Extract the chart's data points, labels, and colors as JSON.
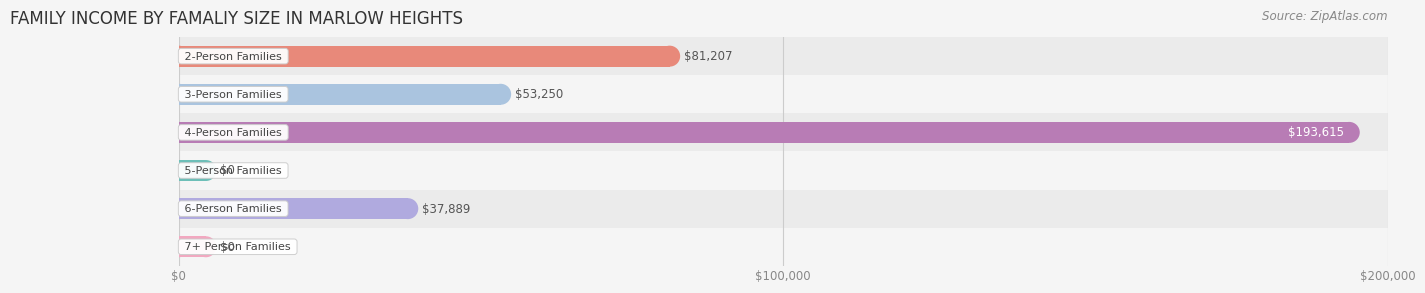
{
  "title": "FAMILY INCOME BY FAMALIY SIZE IN MARLOW HEIGHTS",
  "source": "Source: ZipAtlas.com",
  "categories": [
    "2-Person Families",
    "3-Person Families",
    "4-Person Families",
    "5-Person Families",
    "6-Person Families",
    "7+ Person Families"
  ],
  "values": [
    81207,
    53250,
    193615,
    0,
    37889,
    0
  ],
  "bar_colors": [
    "#E8897A",
    "#AAC4DF",
    "#B87CB5",
    "#6DBFB8",
    "#B0AADF",
    "#F2A8C0"
  ],
  "label_colors": [
    "#555555",
    "#555555",
    "#ffffff",
    "#555555",
    "#555555",
    "#555555"
  ],
  "row_colors_even": "#ebebeb",
  "row_colors_odd": "#f5f5f5",
  "bg_color": "#f5f5f5",
  "xlim": [
    0,
    200000
  ],
  "xticks": [
    0,
    100000,
    200000
  ],
  "xtick_labels": [
    "$0",
    "$100,000",
    "$200,000"
  ],
  "title_fontsize": 12,
  "source_fontsize": 8.5,
  "bar_label_fontsize": 8.5,
  "tick_fontsize": 8.5,
  "category_fontsize": 8,
  "stub_val": 4500
}
